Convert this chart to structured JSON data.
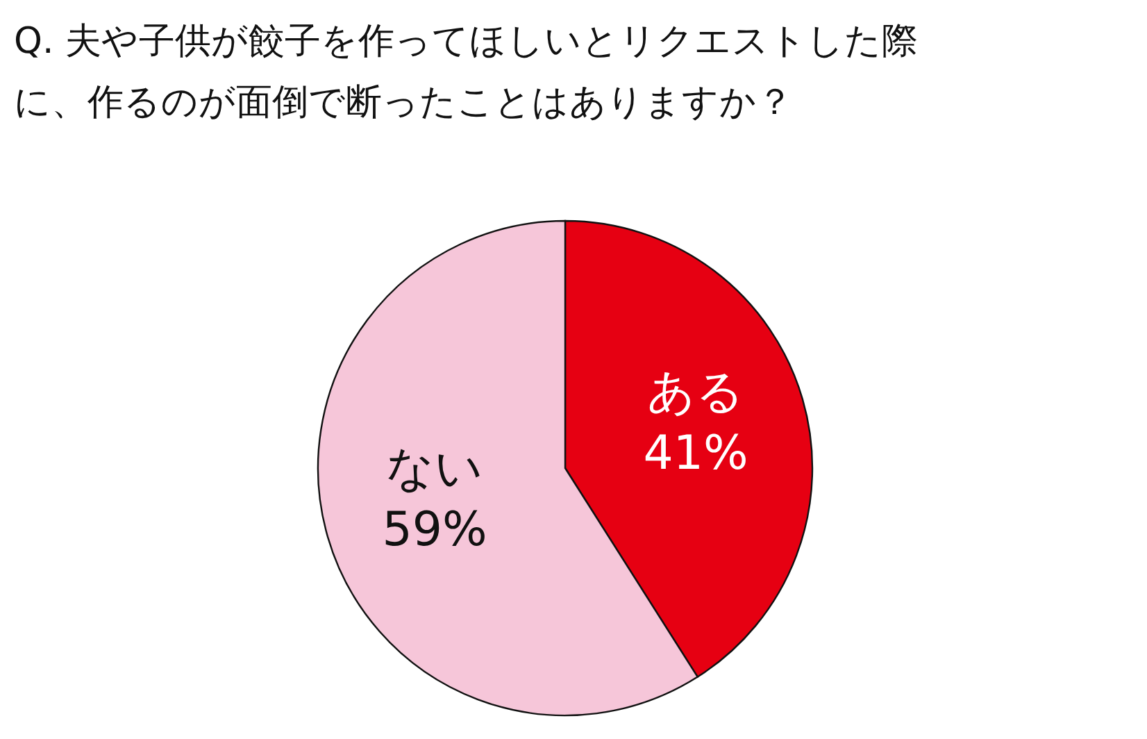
{
  "chart_data": {
    "type": "pie",
    "title": "Q. 夫や子供が餃子を作ってほしいとリクエストした際に、作るのが面倒で断ったことはありますか？",
    "categories": [
      "ある",
      "ない"
    ],
    "values": [
      41,
      59
    ],
    "colors": [
      "#e60012",
      "#f6c6d9"
    ],
    "value_labels": [
      "41%",
      "59%"
    ],
    "legend": false
  }
}
